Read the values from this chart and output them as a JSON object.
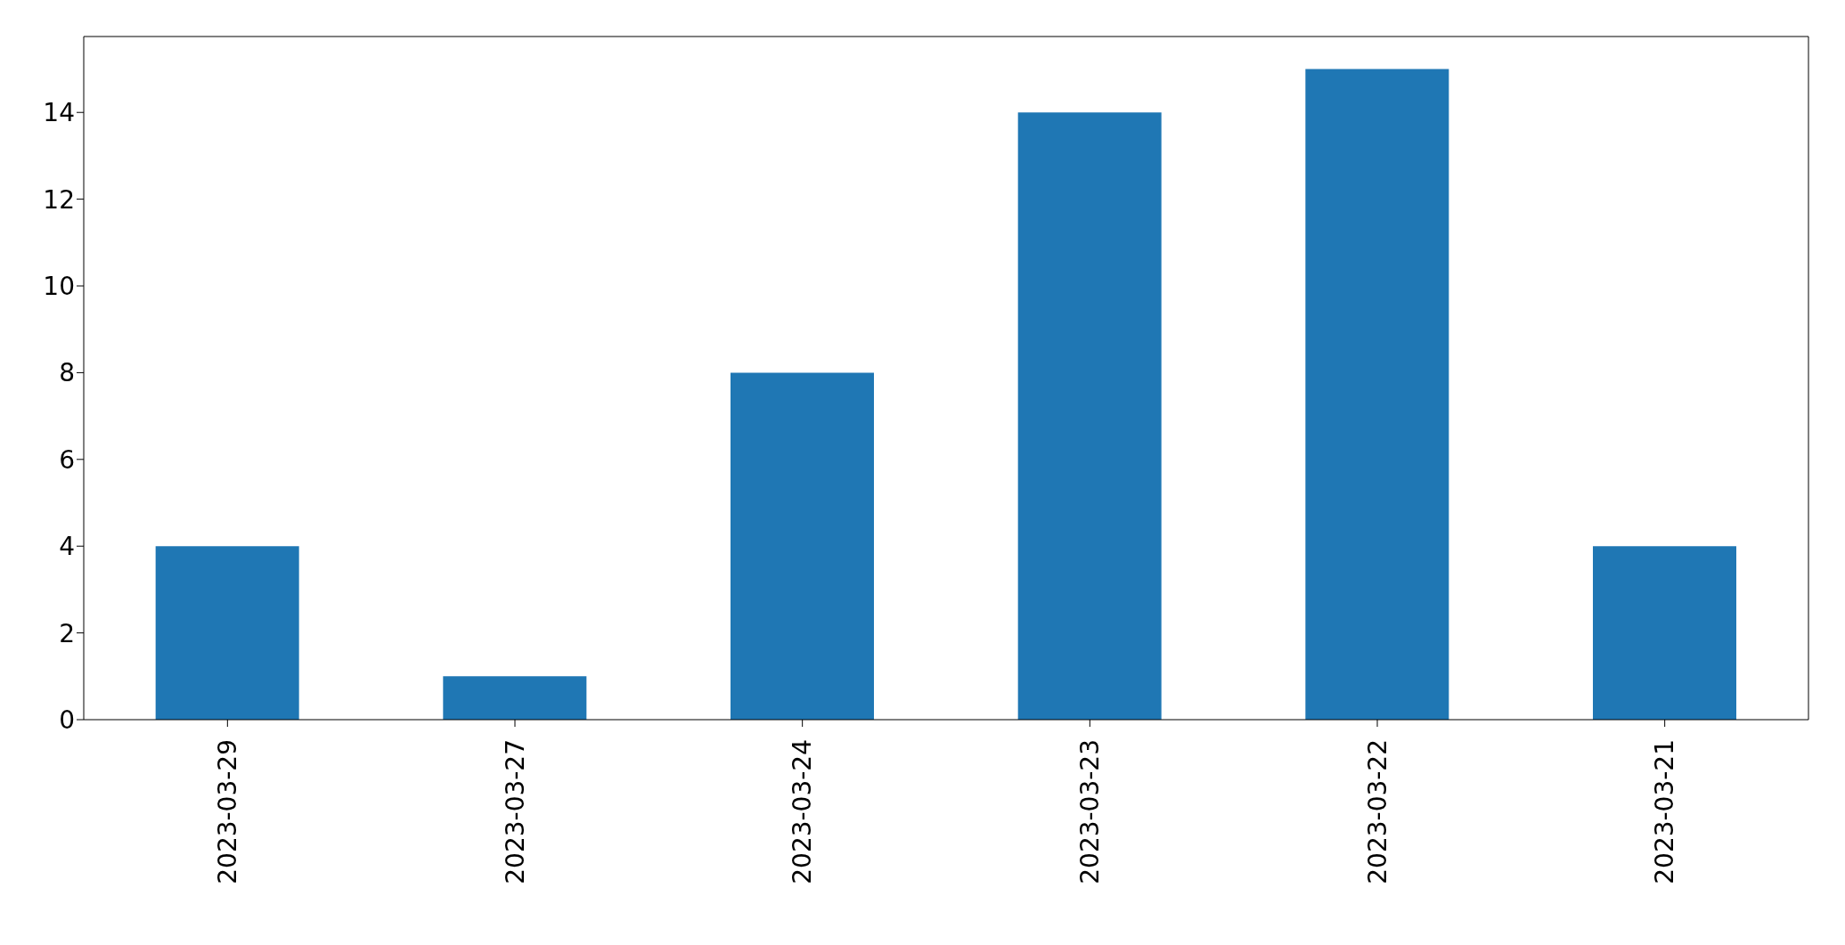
{
  "chart_data": {
    "type": "bar",
    "categories": [
      "2023-03-29",
      "2023-03-27",
      "2023-03-24",
      "2023-03-23",
      "2023-03-22",
      "2023-03-21"
    ],
    "values": [
      4,
      1,
      8,
      14,
      15,
      4
    ],
    "color": "#1f77b4",
    "ylim": [
      0,
      15.75
    ],
    "yticks": [
      0,
      2,
      4,
      6,
      8,
      10,
      12,
      14
    ],
    "grid": false,
    "legend": false
  }
}
